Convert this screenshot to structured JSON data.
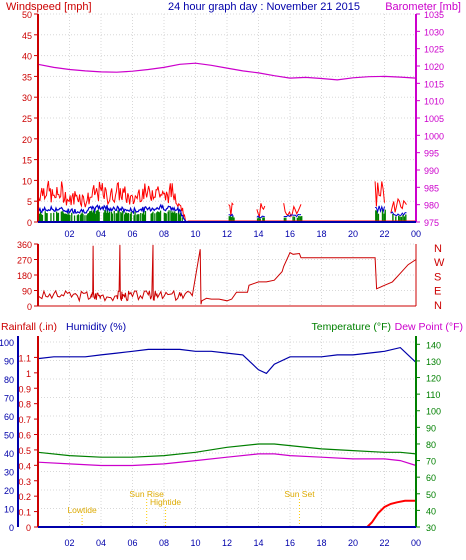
{
  "chart_data": [
    {
      "type": "line",
      "title": "24 hour graph day : November 21 2015",
      "left_axis_label": "Windspeed [mph]",
      "right_axis_label": "Barometer [mb]",
      "left_ylim": [
        0,
        50
      ],
      "left_ticks": [
        "0",
        "5",
        "10",
        "15",
        "20",
        "25",
        "30",
        "35",
        "40",
        "45",
        "50"
      ],
      "right_ylim": [
        975,
        1035
      ],
      "right_ticks": [
        "975",
        "980",
        "985",
        "990",
        "995",
        "1000",
        "1005",
        "1010",
        "1015",
        "1020",
        "1025",
        "1030",
        "1035"
      ],
      "x_hours": [
        0,
        24
      ],
      "x_ticks": [
        "02",
        "04",
        "06",
        "08",
        "10",
        "12",
        "14",
        "16",
        "18",
        "20",
        "22",
        "00"
      ],
      "grid": true,
      "colors": {
        "gust": "#ff0000",
        "avg": "#0000cc",
        "wind_fill": "#008000",
        "barometer": "#cc00cc"
      },
      "series": {
        "barometer": {
          "x": [
            0,
            1,
            2,
            3,
            4,
            5,
            6,
            7,
            8,
            9,
            10,
            11,
            12,
            13,
            14,
            15,
            16,
            17,
            18,
            19,
            20,
            21,
            22,
            23,
            24
          ],
          "y": [
            1020.5,
            1019.6,
            1019.0,
            1018.6,
            1018.3,
            1018.2,
            1018.5,
            1019.0,
            1019.6,
            1020.5,
            1020.8,
            1020.2,
            1019.4,
            1018.6,
            1018.0,
            1017.2,
            1016.5,
            1016.7,
            1016.4,
            1016.0,
            1016.6,
            1016.9,
            1017.0,
            1016.8,
            1016.5
          ]
        },
        "gust_envelope": {
          "x": [
            0,
            0.5,
            1,
            1.5,
            2,
            2.5,
            3,
            3.5,
            4,
            4.5,
            5,
            5.5,
            6,
            6.5,
            7,
            7.5,
            8,
            8.5,
            9,
            9.2,
            9.4,
            24
          ],
          "y": [
            8,
            10,
            7,
            9,
            6,
            8,
            6,
            8,
            9,
            7,
            9,
            8,
            6,
            9,
            8,
            10,
            7,
            9,
            6,
            3,
            0,
            0
          ]
        },
        "avg_envelope": {
          "x": [
            0,
            1,
            2,
            3,
            4,
            5,
            6,
            7,
            8,
            9,
            9.4,
            24
          ],
          "y": [
            3,
            3.5,
            3,
            3,
            4,
            3.5,
            3,
            3.5,
            4,
            3,
            0,
            0
          ]
        },
        "wind_bursts": [
          {
            "x0": 12.1,
            "x1": 12.4,
            "gust": 5,
            "avg": 2
          },
          {
            "x0": 13.9,
            "x1": 14.4,
            "gust": 4,
            "avg": 1.5
          },
          {
            "x0": 15.6,
            "x1": 16.7,
            "gust": 4,
            "avg": 2
          },
          {
            "x0": 21.4,
            "x1": 22.0,
            "gust": 10,
            "avg": 4
          },
          {
            "x0": 22.4,
            "x1": 23.4,
            "gust": 6,
            "avg": 2.5
          }
        ]
      }
    },
    {
      "type": "line",
      "ylim": [
        0,
        360
      ],
      "left_ticks": [
        "0",
        "90",
        "180",
        "270",
        "360"
      ],
      "right_labels": [
        "N",
        "W",
        "S",
        "E",
        "N"
      ],
      "x_hours": [
        0,
        24
      ],
      "x_ticks": [],
      "grid": true,
      "colors": {
        "direction": "#cc0000"
      },
      "series": {
        "direction": {
          "x": [
            0,
            0.5,
            1,
            1.5,
            2,
            2.5,
            3,
            3.4,
            3.5,
            3.6,
            3.8,
            4,
            4.5,
            5,
            5.2,
            5.3,
            5.4,
            5.6,
            5.8,
            6,
            6.5,
            7,
            7.3,
            7.35,
            7.4,
            7.6,
            8,
            8.5,
            9,
            9.2,
            9.8,
            10.3,
            10.35,
            10.4,
            10.7,
            11,
            11.5,
            12,
            12.3,
            12.6,
            13.3,
            13.4,
            14,
            14.5,
            15,
            15.5,
            15.6,
            16,
            16.2,
            16.6,
            16.7,
            17.5,
            18,
            19,
            20,
            21,
            21.4,
            21.5,
            22,
            22.5,
            23,
            23.5,
            24
          ],
          "y": [
            60,
            55,
            70,
            65,
            80,
            60,
            75,
            70,
            350,
            40,
            75,
            60,
            50,
            60,
            355,
            30,
            60,
            45,
            70,
            55,
            60,
            65,
            355,
            40,
            60,
            50,
            55,
            70,
            80,
            45,
            60,
            330,
            10,
            30,
            45,
            40,
            40,
            30,
            40,
            80,
            80,
            120,
            140,
            140,
            150,
            200,
            230,
            310,
            300,
            305,
            280,
            280,
            280,
            280,
            280,
            280,
            280,
            100,
            120,
            140,
            190,
            240,
            270
          ]
        }
      }
    },
    {
      "type": "line",
      "left_axis_label": "Rainfall (.in)",
      "left_axis_label2": "Humidity (%)",
      "right_axis_label": "Temperature (°F)",
      "right_axis_label2": "Dew Point (°F)",
      "rain_ylim": [
        0,
        1.2
      ],
      "rain_ticks": [
        "0",
        "0.1",
        "0.2",
        "0.3",
        "0.4",
        "0.5",
        "0.6",
        "0.7",
        "0.8",
        "0.9",
        "1",
        "1.1"
      ],
      "humidity_ylim": [
        0,
        100
      ],
      "humidity_ticks": [
        "0",
        "10",
        "20",
        "30",
        "40",
        "50",
        "60",
        "70",
        "80",
        "90",
        "100"
      ],
      "temp_ylim": [
        30,
        145
      ],
      "temp_ticks": [
        "30",
        "40",
        "50",
        "60",
        "70",
        "80",
        "90",
        "100",
        "110",
        "120",
        "130",
        "140"
      ],
      "x_hours": [
        0,
        24
      ],
      "x_ticks": [
        "02",
        "04",
        "06",
        "08",
        "10",
        "12",
        "14",
        "16",
        "18",
        "20",
        "22",
        "00"
      ],
      "grid": true,
      "annotations": [
        {
          "text": "Lowtide",
          "hour": 2.8,
          "level": 1
        },
        {
          "text": "Sun Rise",
          "hour": 6.9,
          "level": 3
        },
        {
          "text": "Hightide",
          "hour": 8.1,
          "level": 2
        },
        {
          "text": "Sun Set",
          "hour": 16.6,
          "level": 3
        }
      ],
      "colors": {
        "rain": "#ff0000",
        "humidity": "#0000aa",
        "temperature": "#008000",
        "dewpoint": "#cc00cc",
        "annotation": "#ffcc00"
      },
      "series": {
        "humidity": {
          "x": [
            0,
            1,
            2,
            3,
            4,
            5,
            6,
            7,
            8,
            9,
            10,
            11,
            12,
            13,
            14,
            14.5,
            15,
            16,
            17,
            18,
            19,
            20,
            21,
            22,
            23,
            24
          ],
          "y": [
            91,
            92,
            92,
            92,
            93,
            94,
            95,
            96,
            96,
            96,
            95,
            95,
            94,
            93,
            85,
            83,
            88,
            92,
            92,
            92,
            93,
            93,
            94,
            95,
            97,
            89
          ]
        },
        "temperature": {
          "x": [
            0,
            2,
            4,
            6,
            8,
            10,
            12,
            14,
            15,
            16,
            18,
            20,
            22,
            23,
            24
          ],
          "y": [
            75,
            73,
            72,
            72,
            73,
            75,
            78,
            80,
            80,
            79,
            77,
            76,
            75,
            75,
            74
          ]
        },
        "dewpoint": {
          "x": [
            0,
            2,
            4,
            6,
            8,
            10,
            12,
            14,
            15,
            16,
            18,
            20,
            22,
            23,
            24
          ],
          "y": [
            69,
            68,
            67,
            67,
            68,
            70,
            72,
            74,
            74,
            73,
            72,
            71,
            71,
            70,
            67
          ]
        },
        "rainfall": {
          "x": [
            0,
            20.9,
            21.2,
            21.6,
            22,
            22.4,
            22.8,
            23.3,
            24
          ],
          "y": [
            0,
            0,
            0.03,
            0.09,
            0.13,
            0.15,
            0.16,
            0.17,
            0.17
          ]
        }
      }
    }
  ]
}
